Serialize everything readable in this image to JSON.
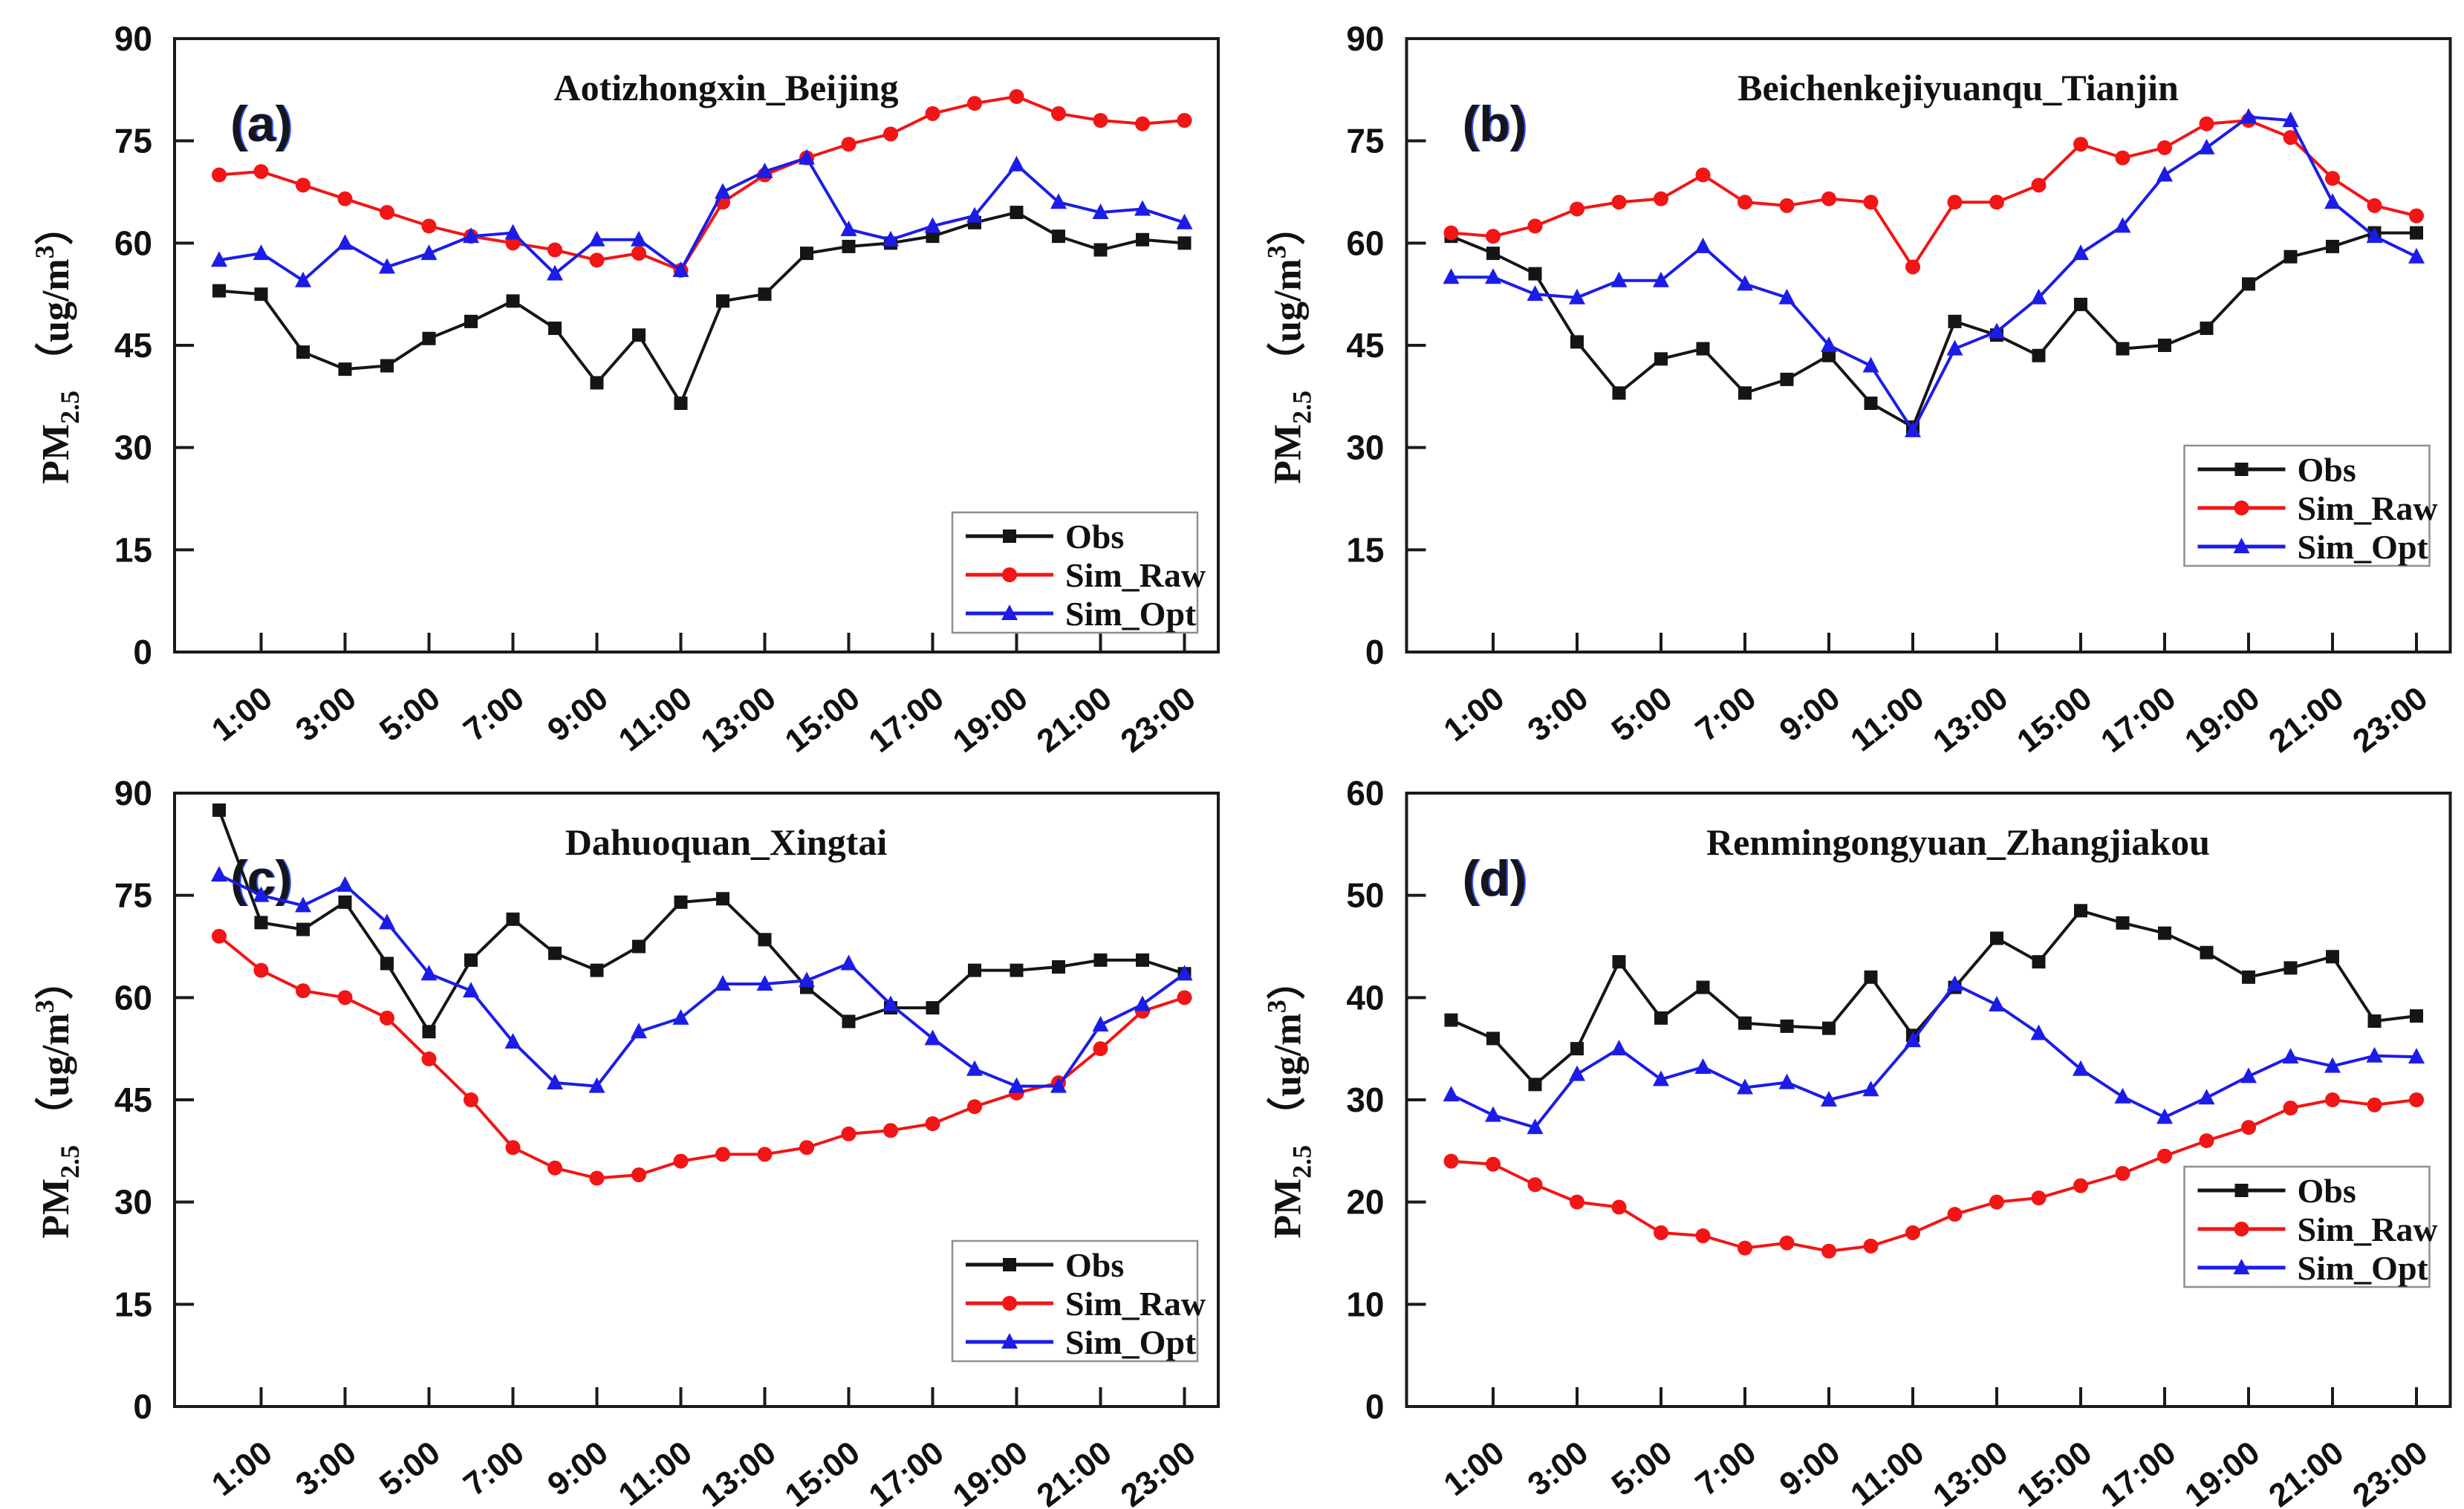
{
  "figure": {
    "background": "#ffffff",
    "ylabel": {
      "prefix": "PM",
      "sub": "2.5",
      "mid": " （ug/m",
      "sup": "3",
      "suffix": "）"
    }
  },
  "colors": {
    "obs": "#151515",
    "sim_raw": "#f21515",
    "sim_opt": "#1c1ce8"
  },
  "x_hours": [
    0,
    1,
    2,
    3,
    4,
    5,
    6,
    7,
    8,
    9,
    10,
    11,
    12,
    13,
    14,
    15,
    16,
    17,
    18,
    19,
    20,
    21,
    22,
    23
  ],
  "x_tick_labels": [
    "1:00",
    "3:00",
    "5:00",
    "7:00",
    "9:00",
    "11:00",
    "13:00",
    "15:00",
    "17:00",
    "19:00",
    "21:00",
    "23:00"
  ],
  "legend_labels": [
    "Obs",
    "Sim_Raw",
    "Sim_Opt"
  ],
  "chart_data": [
    {
      "type": "line",
      "panel": "a",
      "panel_label": "(a)",
      "title": "Aotizhongxin_Beijing",
      "ylim": [
        0,
        90
      ],
      "yticks": [
        0,
        15,
        30,
        45,
        60,
        75,
        90
      ],
      "legend": {
        "y": 690
      },
      "series": [
        {
          "key": "obs",
          "name": "Obs",
          "marker": "square",
          "values": [
            53,
            52.5,
            44,
            41.5,
            42,
            46,
            48.5,
            51.5,
            47.5,
            39.5,
            46.5,
            36.5,
            51.5,
            52.5,
            58.5,
            59.5,
            60,
            61,
            63,
            64.5,
            61,
            59,
            60.5,
            60
          ]
        },
        {
          "key": "sim_raw",
          "name": "Sim_Raw",
          "marker": "circle",
          "values": [
            70,
            70.5,
            68.5,
            66.5,
            64.5,
            62.5,
            61,
            60,
            59,
            57.5,
            58.5,
            56,
            66,
            70,
            72.5,
            74.5,
            76,
            79,
            80.5,
            81.5,
            79,
            78,
            77.5,
            78
          ]
        },
        {
          "key": "sim_opt",
          "name": "Sim_Opt",
          "marker": "triangle",
          "values": [
            57.5,
            58.5,
            54.5,
            60,
            56.5,
            58.5,
            61,
            61.5,
            55.5,
            60.5,
            60.5,
            56,
            67.5,
            70.5,
            72.5,
            62,
            60.5,
            62.5,
            64,
            71.5,
            66,
            64.5,
            65,
            63
          ]
        }
      ]
    },
    {
      "type": "line",
      "panel": "b",
      "panel_label": "(b)",
      "title": "Beichenkejiyuanqu_Tianjin",
      "ylim": [
        0,
        90
      ],
      "yticks": [
        0,
        15,
        30,
        45,
        60,
        75,
        90
      ],
      "legend": {
        "y": 600
      },
      "series": [
        {
          "key": "obs",
          "name": "Obs",
          "marker": "square",
          "values": [
            61,
            58.5,
            55.5,
            45.5,
            38,
            43,
            44.5,
            38,
            40,
            43.5,
            36.5,
            33,
            48.5,
            46.5,
            43.5,
            51,
            44.5,
            45,
            47.5,
            54,
            58,
            59.5,
            61.5,
            61.5
          ]
        },
        {
          "key": "sim_raw",
          "name": "Sim_Raw",
          "marker": "circle",
          "values": [
            61.5,
            61,
            62.5,
            65,
            66,
            66.5,
            70,
            66,
            65.5,
            66.5,
            66,
            56.5,
            66,
            66,
            68.5,
            74.5,
            72.5,
            74,
            77.5,
            78,
            75.5,
            69.5,
            65.5,
            64
          ]
        },
        {
          "key": "sim_opt",
          "name": "Sim_Opt",
          "marker": "triangle",
          "values": [
            55,
            55,
            52.5,
            52,
            54.5,
            54.5,
            59.5,
            54,
            52,
            45,
            42,
            32.5,
            44.5,
            47,
            52,
            58.5,
            62.5,
            70,
            74,
            78.5,
            78,
            66,
            61,
            58
          ]
        }
      ]
    },
    {
      "type": "line",
      "panel": "c",
      "panel_label": "(c)",
      "title": "Dahuoquan_Xingtai",
      "ylim": [
        0,
        90
      ],
      "yticks": [
        0,
        15,
        30,
        45,
        60,
        75,
        90
      ],
      "legend": {
        "y": 655
      },
      "series": [
        {
          "key": "obs",
          "name": "Obs",
          "marker": "square",
          "values": [
            87.5,
            71,
            70,
            74,
            65,
            55,
            65.5,
            71.5,
            66.5,
            64,
            67.5,
            74,
            74.5,
            68.5,
            61.5,
            56.5,
            58.5,
            58.5,
            64,
            64,
            64.5,
            65.5,
            65.5,
            63.5
          ]
        },
        {
          "key": "sim_raw",
          "name": "Sim_Raw",
          "marker": "circle",
          "values": [
            69,
            64,
            61,
            60,
            57,
            51,
            45,
            38,
            35,
            33.5,
            34,
            36,
            37,
            37,
            38,
            40,
            40.5,
            41.5,
            44,
            46,
            47.5,
            52.5,
            58,
            60
          ]
        },
        {
          "key": "sim_opt",
          "name": "Sim_Opt",
          "marker": "triangle",
          "values": [
            78,
            75,
            73.5,
            76.5,
            71,
            63.5,
            61,
            53.5,
            47.5,
            47,
            55,
            57,
            62,
            62,
            62.5,
            65,
            59,
            54,
            49.5,
            47,
            47,
            56,
            59,
            63.5
          ]
        }
      ]
    },
    {
      "type": "line",
      "panel": "d",
      "panel_label": "(d)",
      "title": "Renmingongyuan_Zhangjiakou",
      "ylim": [
        0,
        60
      ],
      "yticks": [
        0,
        10,
        20,
        30,
        40,
        50,
        60
      ],
      "legend": {
        "y": 555
      },
      "series": [
        {
          "key": "obs",
          "name": "Obs",
          "marker": "square",
          "values": [
            37.8,
            36,
            31.5,
            35,
            43.5,
            38,
            41,
            37.5,
            37.2,
            37,
            42,
            36.3,
            41,
            45.8,
            43.5,
            48.5,
            47.3,
            46.3,
            44.4,
            42,
            42.9,
            44,
            37.7,
            38.2
          ]
        },
        {
          "key": "sim_raw",
          "name": "Sim_Raw",
          "marker": "circle",
          "values": [
            24,
            23.7,
            21.7,
            20,
            19.5,
            17,
            16.7,
            15.5,
            16,
            15.2,
            15.7,
            17,
            18.8,
            20,
            20.4,
            21.6,
            22.8,
            24.5,
            26,
            27.3,
            29.2,
            30,
            29.5,
            30
          ]
        },
        {
          "key": "sim_opt",
          "name": "Sim_Opt",
          "marker": "triangle",
          "values": [
            30.5,
            28.5,
            27.3,
            32.5,
            35,
            32,
            33.2,
            31.2,
            31.7,
            30,
            31,
            35.8,
            41.3,
            39.3,
            36.5,
            33,
            30.3,
            28.3,
            30.2,
            32.3,
            34.2,
            33.3,
            34.3,
            34.2
          ]
        }
      ]
    }
  ]
}
